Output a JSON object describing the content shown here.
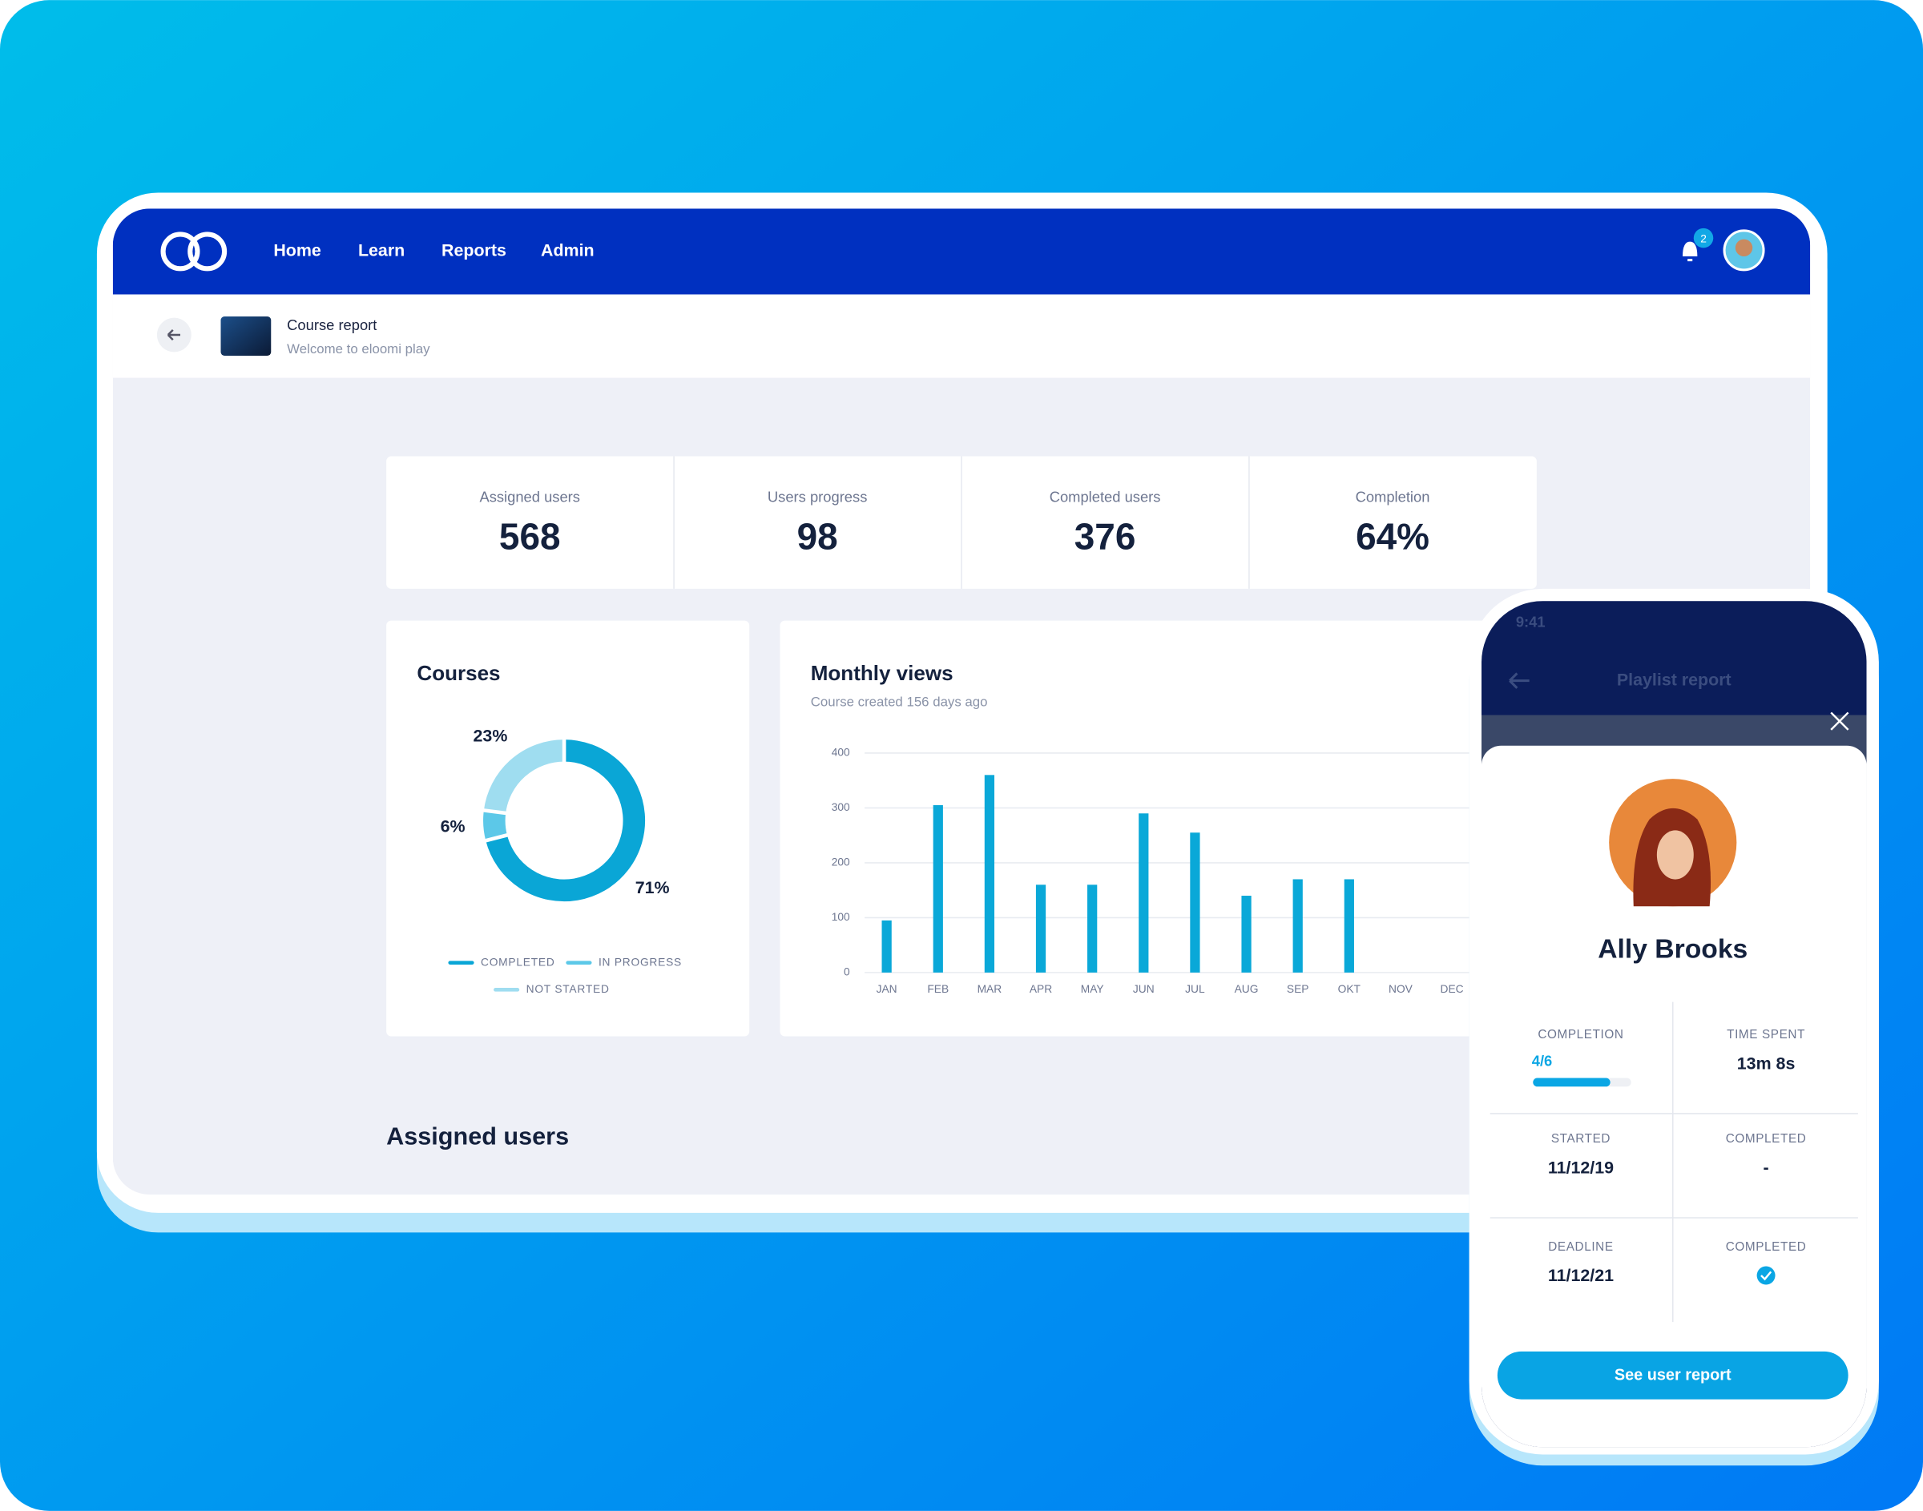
{
  "nav": {
    "items": [
      "Home",
      "Learn",
      "Reports",
      "Admin"
    ],
    "notification_count": "2"
  },
  "header": {
    "title": "Course report",
    "subtitle": "Welcome to eloomi play"
  },
  "stats": [
    {
      "label": "Assigned users",
      "value": "568"
    },
    {
      "label": "Users progress",
      "value": "98"
    },
    {
      "label": "Completed users",
      "value": "376"
    },
    {
      "label": "Completion",
      "value": "64%"
    }
  ],
  "chart_data": [
    {
      "type": "pie",
      "title": "Courses",
      "categories": [
        "COMPLETED",
        "IN PROGRESS",
        "NOT STARTED"
      ],
      "values": [
        71,
        6,
        23
      ],
      "value_labels": [
        "71%",
        "6%",
        "23%"
      ],
      "colors": [
        "#0aa6d6",
        "#5cc8e8",
        "#9fddf0"
      ]
    },
    {
      "type": "bar",
      "title": "Monthly views",
      "subtitle": "Course created 156 days ago",
      "categories": [
        "JAN",
        "FEB",
        "MAR",
        "APR",
        "MAY",
        "JUN",
        "JUL",
        "AUG",
        "SEP",
        "OKT",
        "NOV",
        "DEC"
      ],
      "values": [
        95,
        305,
        360,
        160,
        160,
        290,
        255,
        140,
        170,
        170,
        null,
        null
      ],
      "color": "#0aa8d8",
      "ylim": [
        0,
        400
      ],
      "yticks": [
        0,
        100,
        200,
        300,
        400
      ],
      "grid": true
    }
  ],
  "section_title": "Assigned users",
  "phone": {
    "time": "9:41",
    "title": "Playlist report",
    "name": "Ally Brooks",
    "fields": [
      {
        "label": "COMPLETION",
        "value": "4/6"
      },
      {
        "label": "TIME SPENT",
        "value": "13m 8s"
      },
      {
        "label": "STARTED",
        "value": "11/12/19"
      },
      {
        "label": "COMPLETED",
        "value": "-"
      },
      {
        "label": "DEADLINE",
        "value": "11/12/21"
      },
      {
        "label": "COMPLETED"
      }
    ],
    "button": "See user report"
  }
}
